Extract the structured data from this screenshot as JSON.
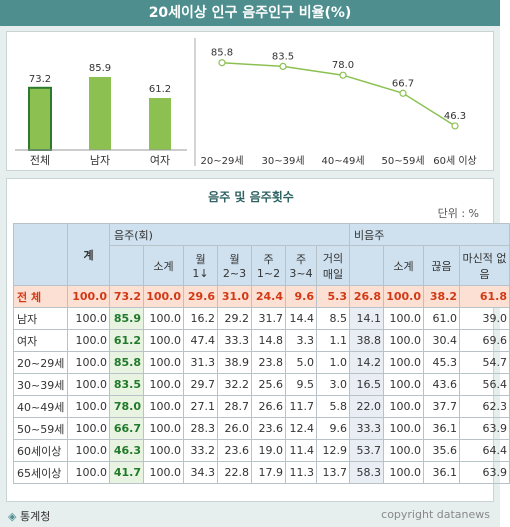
{
  "page_title": "20세이상 인구 음주인구 비율(%)",
  "chart_data": [
    {
      "type": "bar",
      "categories": [
        "전체",
        "남자",
        "여자"
      ],
      "values": [
        73.2,
        85.9,
        61.2
      ],
      "value_labels": [
        "73.2",
        "85.9",
        "61.2"
      ],
      "color": "#8cc152",
      "edge_color": "#2b7a2f"
    },
    {
      "type": "line",
      "categories": [
        "20~29세",
        "30~39세",
        "40~49세",
        "50~59세",
        "60세 이상"
      ],
      "values": [
        85.8,
        83.5,
        78.0,
        66.7,
        46.3
      ],
      "value_labels": [
        "85.8",
        "83.5",
        "78.0",
        "66.7",
        "46.3"
      ],
      "color": "#8cc152"
    }
  ],
  "table": {
    "title": "음주 및 음주횟수",
    "unit": "단위 : %",
    "group_headers": {
      "total": "계",
      "drink": "음주(회)",
      "nondrink": "비음주"
    },
    "sub_headers": [
      "소계",
      "월 1↓",
      "월 2~3",
      "주 1~2",
      "주 3~4",
      "거의 매일",
      "소계",
      "끊음",
      "마신적 없음"
    ],
    "rows": [
      {
        "label": "전 체",
        "total": "100.0",
        "drink": "73.2",
        "cells": [
          "100.0",
          "29.6",
          "31.0",
          "24.4",
          "9.6",
          "5.3"
        ],
        "nondrink": "26.8",
        "ncells": [
          "100.0",
          "38.2",
          "61.8"
        ]
      },
      {
        "label": "남자",
        "total": "100.0",
        "drink": "85.9",
        "cells": [
          "100.0",
          "16.2",
          "29.2",
          "31.7",
          "14.4",
          "8.5"
        ],
        "nondrink": "14.1",
        "ncells": [
          "100.0",
          "61.0",
          "39.0"
        ]
      },
      {
        "label": "여자",
        "total": "100.0",
        "drink": "61.2",
        "cells": [
          "100.0",
          "47.4",
          "33.3",
          "14.8",
          "3.3",
          "1.1"
        ],
        "nondrink": "38.8",
        "ncells": [
          "100.0",
          "30.4",
          "69.6"
        ]
      },
      {
        "label": "20~29세",
        "total": "100.0",
        "drink": "85.8",
        "cells": [
          "100.0",
          "31.3",
          "38.9",
          "23.8",
          "5.0",
          "1.0"
        ],
        "nondrink": "14.2",
        "ncells": [
          "100.0",
          "45.3",
          "54.7"
        ]
      },
      {
        "label": "30~39세",
        "total": "100.0",
        "drink": "83.5",
        "cells": [
          "100.0",
          "29.7",
          "32.2",
          "25.6",
          "9.5",
          "3.0"
        ],
        "nondrink": "16.5",
        "ncells": [
          "100.0",
          "43.6",
          "56.4"
        ]
      },
      {
        "label": "40~49세",
        "total": "100.0",
        "drink": "78.0",
        "cells": [
          "100.0",
          "27.1",
          "28.7",
          "26.6",
          "11.7",
          "5.8"
        ],
        "nondrink": "22.0",
        "ncells": [
          "100.0",
          "37.7",
          "62.3"
        ]
      },
      {
        "label": "50~59세",
        "total": "100.0",
        "drink": "66.7",
        "cells": [
          "100.0",
          "28.3",
          "26.0",
          "23.6",
          "12.4",
          "9.6"
        ],
        "nondrink": "33.3",
        "ncells": [
          "100.0",
          "36.1",
          "63.9"
        ]
      },
      {
        "label": "60세이상",
        "total": "100.0",
        "drink": "46.3",
        "cells": [
          "100.0",
          "33.2",
          "23.6",
          "19.0",
          "11.4",
          "12.9"
        ],
        "nondrink": "53.7",
        "ncells": [
          "100.0",
          "35.6",
          "64.4"
        ]
      },
      {
        "label": "65세이상",
        "total": "100.0",
        "drink": "41.7",
        "cells": [
          "100.0",
          "34.3",
          "22.8",
          "17.9",
          "11.3",
          "13.7"
        ],
        "nondrink": "58.3",
        "ncells": [
          "100.0",
          "36.1",
          "63.9"
        ]
      }
    ]
  },
  "footer": {
    "source_bullet": "◈",
    "source": "통계청",
    "copyright": "copyright datanews"
  }
}
